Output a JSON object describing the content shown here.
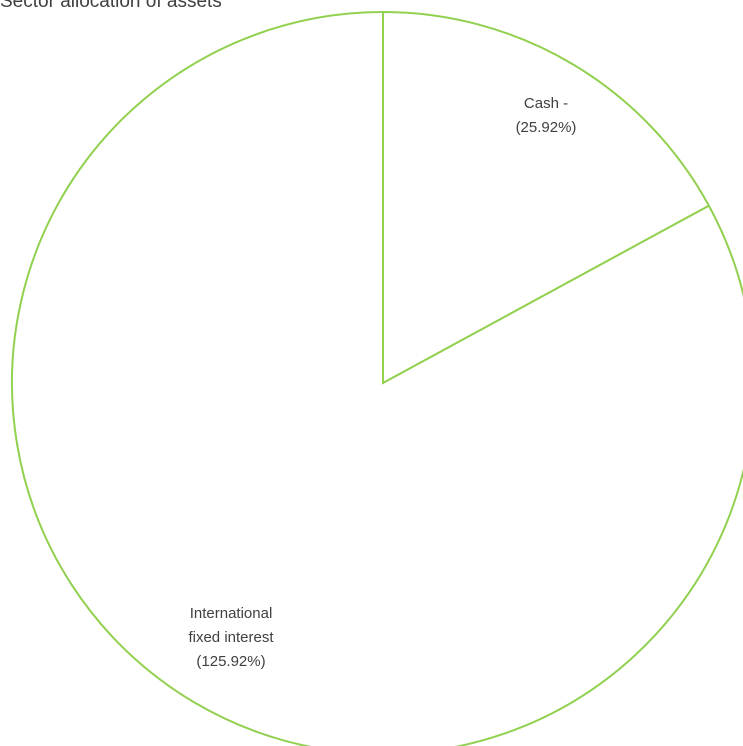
{
  "chart_data": {
    "type": "pie",
    "title": "Sector allocation of assets",
    "slices": [
      {
        "name": "Cash",
        "value": 25.92,
        "label_lines": [
          "Cash -",
          "(25.92%)"
        ]
      },
      {
        "name": "International fixed interest",
        "value": 125.92,
        "label_lines": [
          "International",
          "fixed interest",
          "(125.92%)"
        ]
      }
    ],
    "legend": "none",
    "colors": {
      "fill": "#ffffff",
      "stroke": "#92d050",
      "text": "#404040"
    }
  }
}
